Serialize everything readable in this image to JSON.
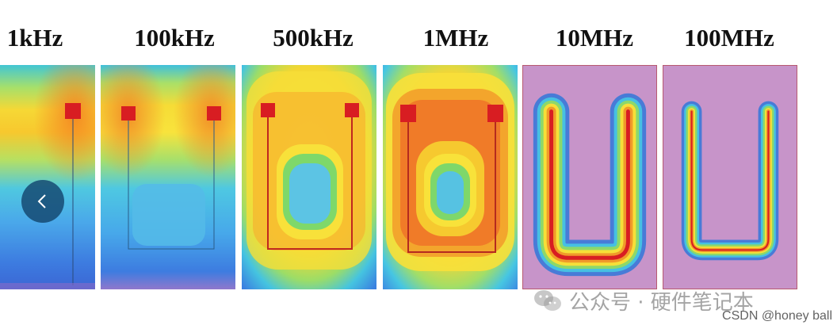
{
  "figure": {
    "labels": [
      "1kHz",
      "100kHz",
      "500kHz",
      "1MHz",
      "10MHz",
      "100MHz"
    ]
  },
  "watermark": {
    "text": "公众号 · 硬件笔记本",
    "icon": "wechat-icon"
  },
  "credit": {
    "text": "CSDN @honey ball"
  },
  "nav": {
    "prev_icon": "chevron-left-icon"
  },
  "colors": {
    "navButton": "#14466e",
    "purple": "#c794c9",
    "red": "#d81d22",
    "blue": "#3d7ce0",
    "yellow": "#f7e43a",
    "green": "#6fd06a"
  }
}
